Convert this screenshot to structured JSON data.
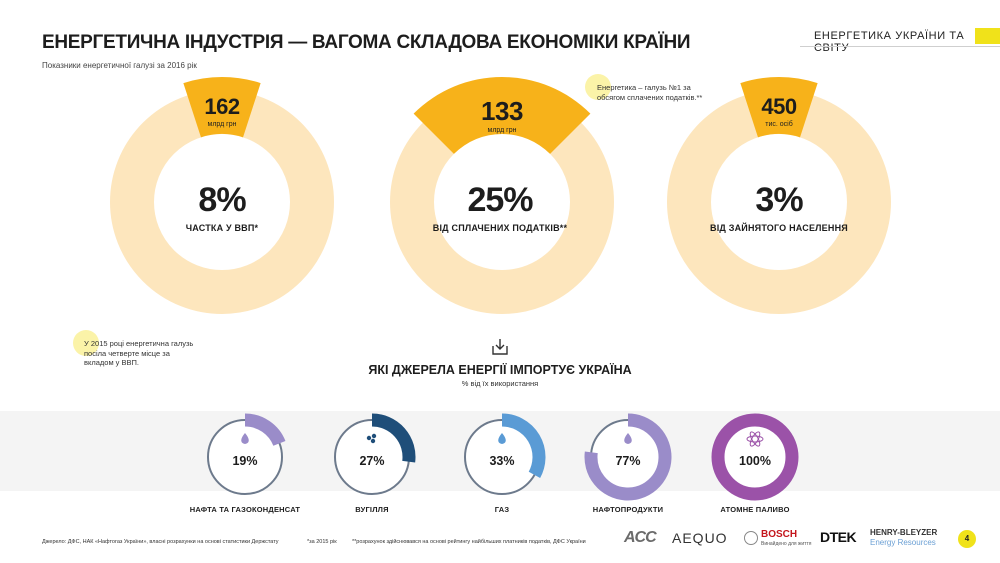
{
  "header": {
    "title": "ЕНЕРГЕТИЧНА ІНДУСТРІЯ — ВАГОМА СКЛАДОВА ЕКОНОМІКИ КРАЇНИ",
    "subtitle": "Показники енергетичної галузі за 2016 рік",
    "section": "ЕНЕРГЕТИКА УКРАЇНИ ТА СВІТУ"
  },
  "notes": {
    "tax_note": "Енергетика – галузь №1 за обсягом сплачених податків.**",
    "gdp_note": "У 2015 році енергетична галузь посіла четверте місце за вкладом у ВВП."
  },
  "stats": [
    {
      "value": "162",
      "unit": "млрд грн",
      "percent": "8%",
      "caption": "ЧАСТКА  У ВВП*",
      "fraction": 0.08
    },
    {
      "value": "133",
      "unit": "млрд грн",
      "percent": "25%",
      "caption": "ВІД СПЛАЧЕНИХ ПОДАТКІВ**",
      "fraction": 0.25
    },
    {
      "value": "450",
      "unit": "тис. осіб",
      "percent": "3%",
      "caption": "ВІД ЗАЙНЯТОГО НАСЕЛЕННЯ",
      "fraction": 0.03
    }
  ],
  "imports": {
    "title": "ЯКІ ДЖЕРЕЛА ЕНЕРГІЇ ІМПОРТУЄ УКРАЇНА",
    "subtitle": "% від їх використання"
  },
  "chart_data": {
    "type": "pie",
    "title": "ЯКІ ДЖЕРЕЛА ЕНЕРГІЇ ІМПОРТУЄ УКРАЇНА",
    "categories": [
      "НАФТА ТА ГАЗОКОНДЕНСАТ",
      "ВУГІЛЛЯ",
      "ГАЗ",
      "НАФТОПРОДУКТИ",
      "АТОМНЕ ПАЛИВО"
    ],
    "values": [
      19,
      27,
      33,
      77,
      100
    ],
    "labels": [
      "19%",
      "27%",
      "33%",
      "77%",
      "100%"
    ],
    "colors": [
      "#9a8cc9",
      "#1f4e79",
      "#5a9bd5",
      "#9a8cc9",
      "#9b52a8"
    ],
    "icons": [
      "oil-drop-icon",
      "coal-icon",
      "gas-flame-icon",
      "fuel-drop-icon",
      "atom-icon"
    ]
  },
  "colors": {
    "accent": "#f7b21a",
    "ring": "#fde6bd",
    "yellow": "#f0e21a"
  },
  "footer": {
    "source": "Джерело: ДФС, НАК «Нафтогаз України», власні розрахунки на основі статистики Держстату",
    "note1": "*за 2015 рік",
    "note2": "**розрахунок здійснювався на основі рейтингу найбільших платників податків, ДФС України",
    "logos": [
      "ACC",
      "AEQUO",
      "BOSCH",
      "Винайдено для життя",
      "DTEK",
      "HENRY-BLEYZER",
      "Energy Resources"
    ],
    "page": "4"
  }
}
